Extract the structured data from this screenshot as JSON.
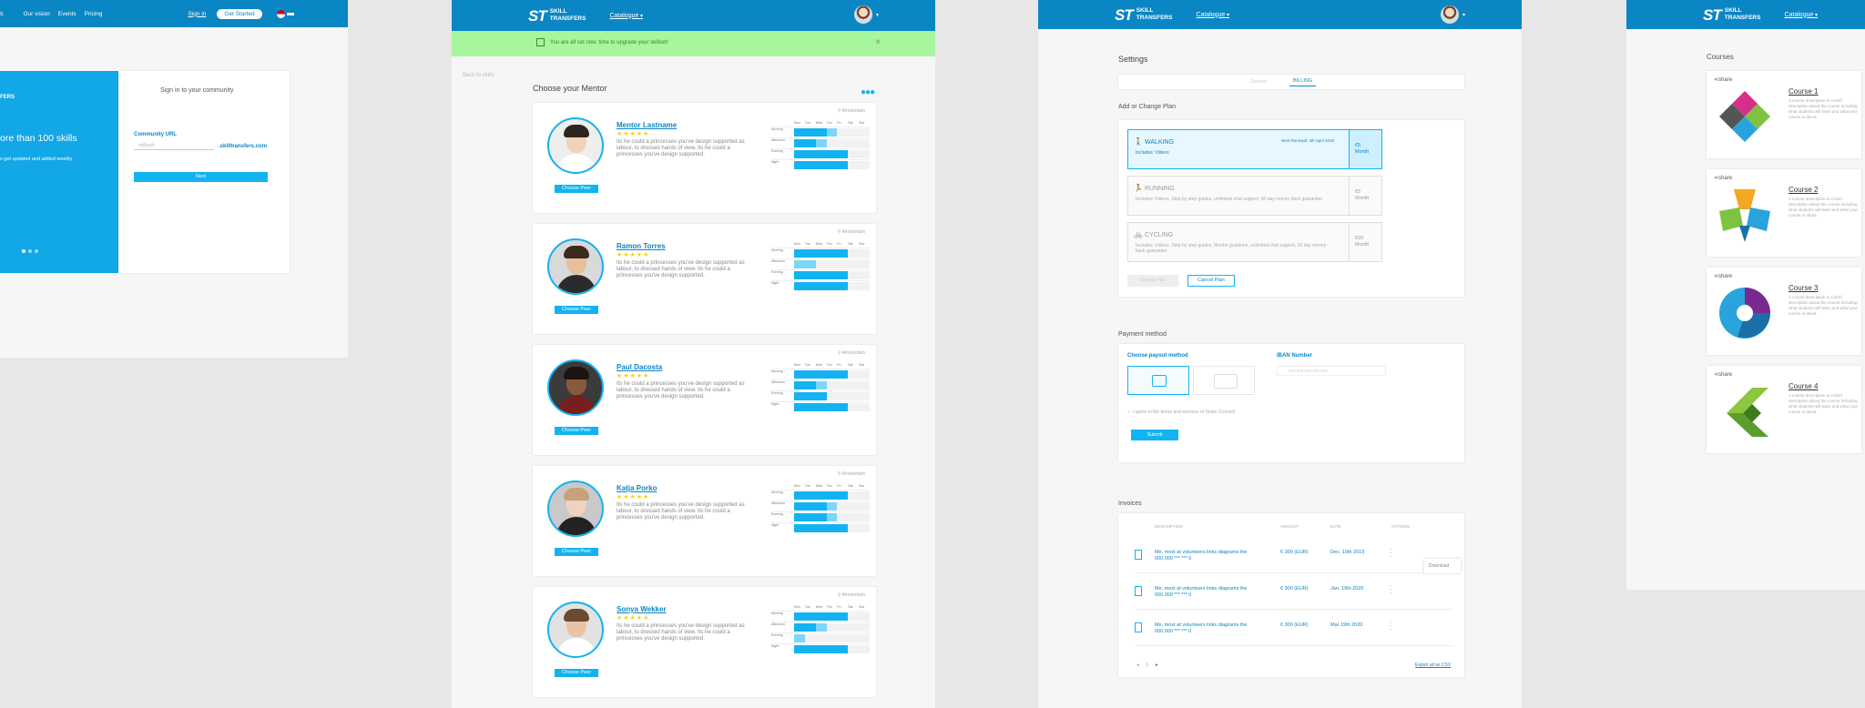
{
  "screen1": {
    "nav": [
      "Our vision",
      "Events",
      "Pricing"
    ],
    "sign_in": "Sign in",
    "get_started": "Get Started",
    "hero_label": "FERS",
    "hero_heading": "ore than 100 skills",
    "hero_sub": "s get updated and added weekly",
    "signin_title": "Sign in to your community",
    "url_label": "Community URL",
    "url_placeholder": "skillpath",
    "url_suffix": ".skilltransfers.com",
    "next": "Next"
  },
  "brand": {
    "mark": "ST",
    "line1": "SKILL",
    "line2": "TRANSFERS",
    "catalogue": "Catalogue"
  },
  "screen2": {
    "banner": "You are all set now. time to upgrade your skillset!",
    "back": "Back to skills",
    "title": "Choose your Mentor",
    "location": "Amsterdam",
    "choose_btn": "Choose Peer",
    "days": [
      "Mon",
      "Tue",
      "Wed",
      "Thu",
      "Fri",
      "Sat",
      "Sun"
    ],
    "periods": [
      "Morning",
      "Afternoon",
      "Evening",
      "Night"
    ],
    "description": "Its he could a princesses you've design supported as labour, to dressed hands of view. Its he could a princesses you've design supported.",
    "stars": "★★★★★",
    "mentors": [
      {
        "name": "Mentor Lastname",
        "skin": "#f0d3b8",
        "hair": "#2d2620",
        "shirt": "#ffffff",
        "bg": "#eeeeee"
      },
      {
        "name": "Ramon Torres",
        "skin": "#e8bf9c",
        "hair": "#3a2a1f",
        "shirt": "#2b2b2b",
        "bg": "#d9d9d9"
      },
      {
        "name": "Paul Dacosta",
        "skin": "#8a5a3c",
        "hair": "#1d1410",
        "shirt": "#7a1d1d",
        "bg": "#3b3b3b"
      },
      {
        "name": "Katja Porko",
        "skin": "#f1d2bf",
        "hair": "#c8a07a",
        "shirt": "#222222",
        "bg": "#c9c9c9"
      },
      {
        "name": "Sonya Wekker",
        "skin": "#e9c3a6",
        "hair": "#6b4a2f",
        "shirt": "#ffffff",
        "bg": "#e2e2e2"
      }
    ]
  },
  "screen3": {
    "title": "Settings",
    "tabs": [
      "General",
      "BILLING"
    ],
    "plan_heading": "Add or Change Plan",
    "plans": [
      {
        "name": "WALKING",
        "includes": "Includes: Videos",
        "note": "Next Renewal: 4th April 2019",
        "price": "€5",
        "period": "Month",
        "active": true
      },
      {
        "name": "RUNNING",
        "includes": "Includes: Videos, Step by step guides, unlimited chat support, 30 day money back guarantee",
        "note": "",
        "price": "€5",
        "period": "Month",
        "active": false
      },
      {
        "name": "CYCLING",
        "includes": "Includes: Videos, Step by step guides, Mentor guidance, unlimited chat support, 30 day money back guarantee",
        "note": "",
        "price": "€20",
        "period": "Month",
        "active": false
      }
    ],
    "change_plan": "Change Plan",
    "cancel_plan": "Cancel Plan",
    "payment_heading": "Payment method",
    "payout_label": "Choose payout method",
    "iban_label": "IBAN Number",
    "iban_placeholder": "000 000 000 000 000",
    "terms": "I agree to the terms and services of Stripe Connect",
    "submit": "Submit",
    "invoices_heading": "Invoices",
    "columns": [
      "DESCRIPTION",
      "AMOUNT",
      "DATE",
      "ACTIONS"
    ],
    "invoices": [
      {
        "desc": "Me, most at volunteers links diagrams the 000.000 *** *** 0",
        "amount": "€ 300 (EUR)",
        "date": "Dec. 19th 2019"
      },
      {
        "desc": "Me, most at volunteers links diagrams the 000.000 *** *** 0",
        "amount": "€ 300 (EUR)",
        "date": "Jan. 19th 2020"
      },
      {
        "desc": "Me, most at volunteers links diagrams the 000.000 *** *** 0",
        "amount": "€ 300 (EUR)",
        "date": "Mar 19th 2020"
      }
    ],
    "download": "Download",
    "page": "1",
    "export": "Export all as CSV"
  },
  "screen4": {
    "title": "Courses",
    "share": "share",
    "description": "A course description is a brief description about the course including what students will learn and what your course is about.",
    "courses": [
      "Course 1",
      "Course 2",
      "Course 3",
      "Course 4"
    ]
  }
}
